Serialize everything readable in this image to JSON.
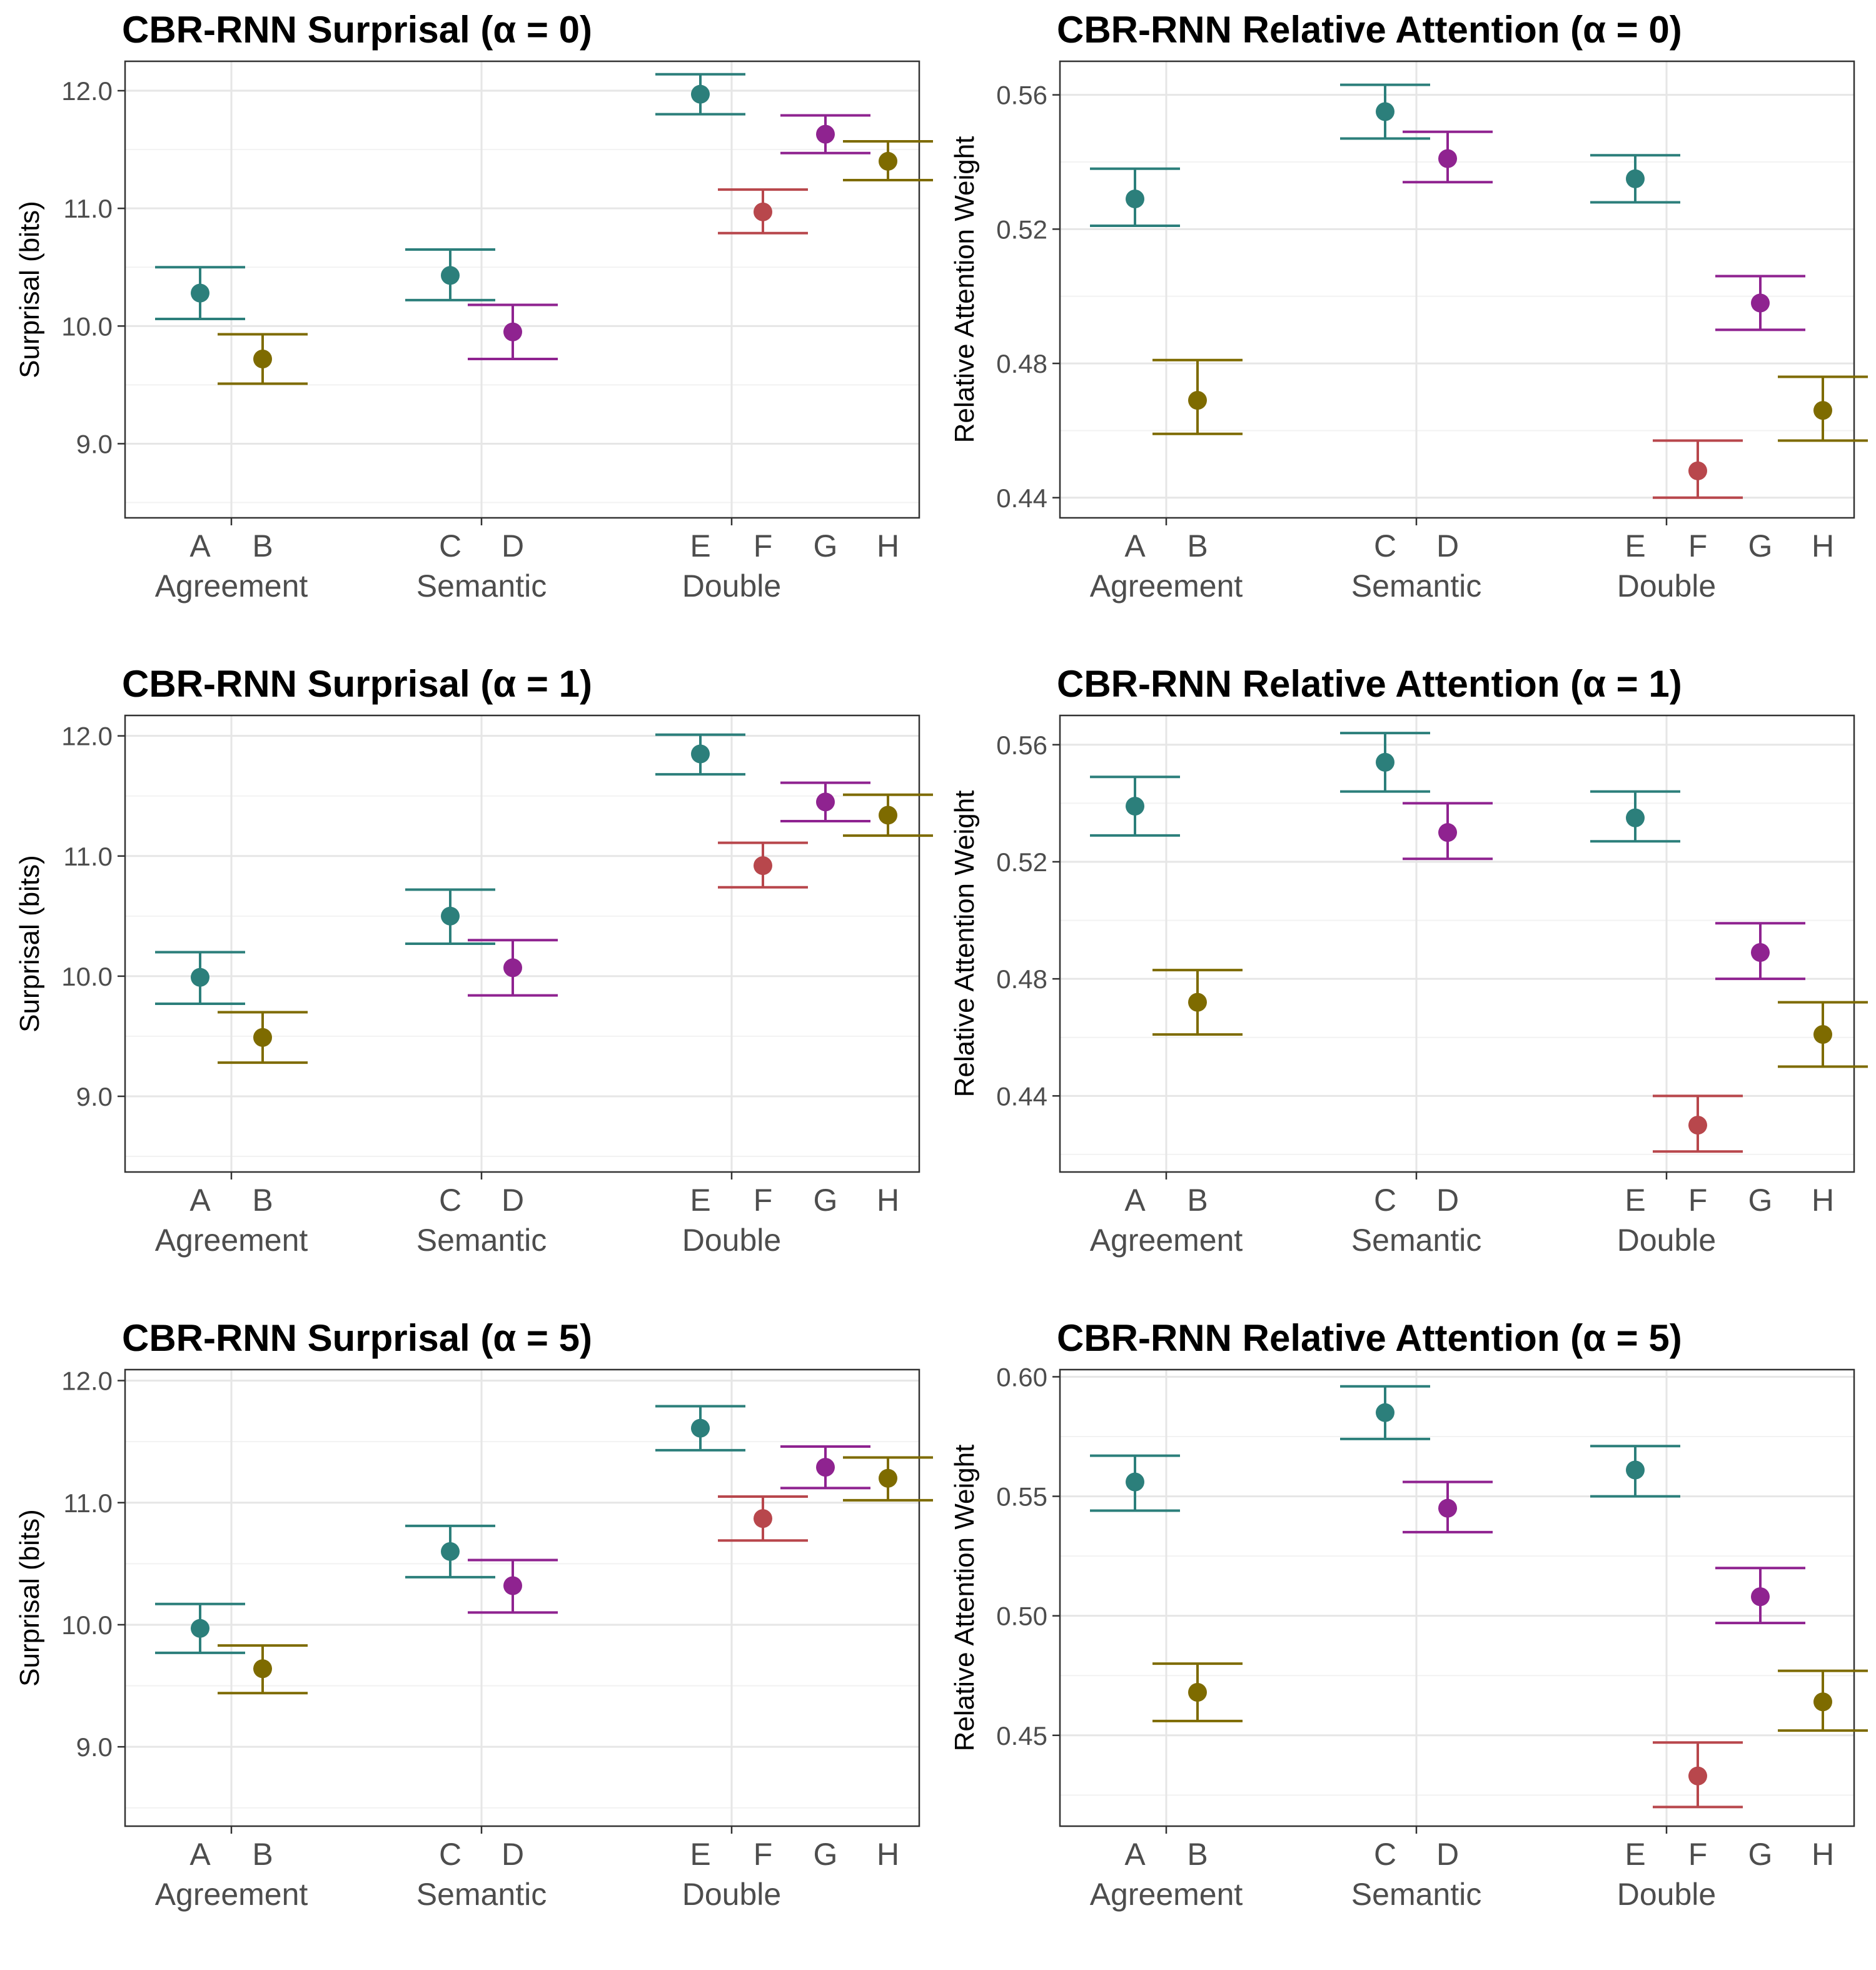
{
  "colors": {
    "teal": "#2c7f7b",
    "olive": "#7e6b00",
    "purple": "#8f2390",
    "red": "#b8474c",
    "grid_major": "#e6e6e6",
    "grid_minor": "#f2f2f2",
    "axis_text": "#4d4d4d"
  },
  "chart_data": [
    {
      "type": "scatter",
      "title": "CBR-RNN Surprisal (α = 0)",
      "ylabel": "Surprisal (bits)",
      "ylim": [
        8.37,
        12.25
      ],
      "yticks": [
        9.0,
        10.0,
        11.0,
        12.0
      ],
      "ytick_labels": [
        "9.0",
        "10.0",
        "11.0",
        "12.0"
      ],
      "groups": [
        "Agreement",
        "Semantic",
        "Double"
      ],
      "points": [
        {
          "label": "A",
          "group": "Agreement",
          "y": 10.28,
          "lo": 10.06,
          "hi": 10.5,
          "color": "teal"
        },
        {
          "label": "B",
          "group": "Agreement",
          "y": 9.72,
          "lo": 9.51,
          "hi": 9.93,
          "color": "olive"
        },
        {
          "label": "C",
          "group": "Semantic",
          "y": 10.43,
          "lo": 10.22,
          "hi": 10.65,
          "color": "teal"
        },
        {
          "label": "D",
          "group": "Semantic",
          "y": 9.95,
          "lo": 9.72,
          "hi": 10.18,
          "color": "purple"
        },
        {
          "label": "E",
          "group": "Double",
          "y": 11.97,
          "lo": 11.8,
          "hi": 12.14,
          "color": "teal"
        },
        {
          "label": "F",
          "group": "Double",
          "y": 10.97,
          "lo": 10.79,
          "hi": 11.16,
          "color": "red"
        },
        {
          "label": "G",
          "group": "Double",
          "y": 11.63,
          "lo": 11.47,
          "hi": 11.79,
          "color": "purple"
        },
        {
          "label": "H",
          "group": "Double",
          "y": 11.4,
          "lo": 11.24,
          "hi": 11.57,
          "color": "olive"
        }
      ]
    },
    {
      "type": "scatter",
      "title": "CBR-RNN Relative Attention (α = 0)",
      "ylabel": "Relative Attention Weight",
      "ylim": [
        0.434,
        0.57
      ],
      "yticks": [
        0.44,
        0.48,
        0.52,
        0.56
      ],
      "ytick_labels": [
        "0.44",
        "0.48",
        "0.52",
        "0.56"
      ],
      "groups": [
        "Agreement",
        "Semantic",
        "Double"
      ],
      "points": [
        {
          "label": "A",
          "group": "Agreement",
          "y": 0.529,
          "lo": 0.521,
          "hi": 0.538,
          "color": "teal"
        },
        {
          "label": "B",
          "group": "Agreement",
          "y": 0.469,
          "lo": 0.459,
          "hi": 0.481,
          "color": "olive"
        },
        {
          "label": "C",
          "group": "Semantic",
          "y": 0.555,
          "lo": 0.547,
          "hi": 0.563,
          "color": "teal"
        },
        {
          "label": "D",
          "group": "Semantic",
          "y": 0.541,
          "lo": 0.534,
          "hi": 0.549,
          "color": "purple"
        },
        {
          "label": "E",
          "group": "Double",
          "y": 0.535,
          "lo": 0.528,
          "hi": 0.542,
          "color": "teal"
        },
        {
          "label": "F",
          "group": "Double",
          "y": 0.448,
          "lo": 0.44,
          "hi": 0.457,
          "color": "red"
        },
        {
          "label": "G",
          "group": "Double",
          "y": 0.498,
          "lo": 0.49,
          "hi": 0.506,
          "color": "purple"
        },
        {
          "label": "H",
          "group": "Double",
          "y": 0.466,
          "lo": 0.457,
          "hi": 0.476,
          "color": "olive"
        }
      ]
    },
    {
      "type": "scatter",
      "title": "CBR-RNN Surprisal (α = 1)",
      "ylabel": "Surprisal (bits)",
      "ylim": [
        8.37,
        12.17
      ],
      "yticks": [
        9.0,
        10.0,
        11.0,
        12.0
      ],
      "ytick_labels": [
        "9.0",
        "10.0",
        "11.0",
        "12.0"
      ],
      "groups": [
        "Agreement",
        "Semantic",
        "Double"
      ],
      "points": [
        {
          "label": "A",
          "group": "Agreement",
          "y": 9.99,
          "lo": 9.77,
          "hi": 10.2,
          "color": "teal"
        },
        {
          "label": "B",
          "group": "Agreement",
          "y": 9.49,
          "lo": 9.28,
          "hi": 9.7,
          "color": "olive"
        },
        {
          "label": "C",
          "group": "Semantic",
          "y": 10.5,
          "lo": 10.27,
          "hi": 10.72,
          "color": "teal"
        },
        {
          "label": "D",
          "group": "Semantic",
          "y": 10.07,
          "lo": 9.84,
          "hi": 10.3,
          "color": "purple"
        },
        {
          "label": "E",
          "group": "Double",
          "y": 11.85,
          "lo": 11.68,
          "hi": 12.01,
          "color": "teal"
        },
        {
          "label": "F",
          "group": "Double",
          "y": 10.92,
          "lo": 10.74,
          "hi": 11.11,
          "color": "red"
        },
        {
          "label": "G",
          "group": "Double",
          "y": 11.45,
          "lo": 11.29,
          "hi": 11.61,
          "color": "purple"
        },
        {
          "label": "H",
          "group": "Double",
          "y": 11.34,
          "lo": 11.17,
          "hi": 11.51,
          "color": "olive"
        }
      ]
    },
    {
      "type": "scatter",
      "title": "CBR-RNN Relative Attention (α = 1)",
      "ylabel": "Relative Attention Weight",
      "ylim": [
        0.414,
        0.57
      ],
      "yticks": [
        0.44,
        0.48,
        0.52,
        0.56
      ],
      "ytick_labels": [
        "0.44",
        "0.48",
        "0.52",
        "0.56"
      ],
      "groups": [
        "Agreement",
        "Semantic",
        "Double"
      ],
      "points": [
        {
          "label": "A",
          "group": "Agreement",
          "y": 0.539,
          "lo": 0.529,
          "hi": 0.549,
          "color": "teal"
        },
        {
          "label": "B",
          "group": "Agreement",
          "y": 0.472,
          "lo": 0.461,
          "hi": 0.483,
          "color": "olive"
        },
        {
          "label": "C",
          "group": "Semantic",
          "y": 0.554,
          "lo": 0.544,
          "hi": 0.564,
          "color": "teal"
        },
        {
          "label": "D",
          "group": "Semantic",
          "y": 0.53,
          "lo": 0.521,
          "hi": 0.54,
          "color": "purple"
        },
        {
          "label": "E",
          "group": "Double",
          "y": 0.535,
          "lo": 0.527,
          "hi": 0.544,
          "color": "teal"
        },
        {
          "label": "F",
          "group": "Double",
          "y": 0.43,
          "lo": 0.421,
          "hi": 0.44,
          "color": "red"
        },
        {
          "label": "G",
          "group": "Double",
          "y": 0.489,
          "lo": 0.48,
          "hi": 0.499,
          "color": "purple"
        },
        {
          "label": "H",
          "group": "Double",
          "y": 0.461,
          "lo": 0.45,
          "hi": 0.472,
          "color": "olive"
        }
      ]
    },
    {
      "type": "scatter",
      "title": "CBR-RNN Surprisal (α = 5)",
      "ylabel": "Surprisal (bits)",
      "ylim": [
        8.35,
        12.09
      ],
      "yticks": [
        9.0,
        10.0,
        11.0,
        12.0
      ],
      "ytick_labels": [
        "9.0",
        "10.0",
        "11.0",
        "12.0"
      ],
      "groups": [
        "Agreement",
        "Semantic",
        "Double"
      ],
      "points": [
        {
          "label": "A",
          "group": "Agreement",
          "y": 9.97,
          "lo": 9.77,
          "hi": 10.17,
          "color": "teal"
        },
        {
          "label": "B",
          "group": "Agreement",
          "y": 9.64,
          "lo": 9.44,
          "hi": 9.83,
          "color": "olive"
        },
        {
          "label": "C",
          "group": "Semantic",
          "y": 10.6,
          "lo": 10.39,
          "hi": 10.81,
          "color": "teal"
        },
        {
          "label": "D",
          "group": "Semantic",
          "y": 10.32,
          "lo": 10.1,
          "hi": 10.53,
          "color": "purple"
        },
        {
          "label": "E",
          "group": "Double",
          "y": 11.61,
          "lo": 11.43,
          "hi": 11.79,
          "color": "teal"
        },
        {
          "label": "F",
          "group": "Double",
          "y": 10.87,
          "lo": 10.69,
          "hi": 11.05,
          "color": "red"
        },
        {
          "label": "G",
          "group": "Double",
          "y": 11.29,
          "lo": 11.12,
          "hi": 11.46,
          "color": "purple"
        },
        {
          "label": "H",
          "group": "Double",
          "y": 11.2,
          "lo": 11.02,
          "hi": 11.37,
          "color": "olive"
        }
      ]
    },
    {
      "type": "scatter",
      "title": "CBR-RNN Relative Attention (α = 5)",
      "ylabel": "Relative Attention Weight",
      "ylim": [
        0.412,
        0.603
      ],
      "yticks": [
        0.45,
        0.5,
        0.55,
        0.6
      ],
      "ytick_labels": [
        "0.45",
        "0.50",
        "0.55",
        "0.60"
      ],
      "groups": [
        "Agreement",
        "Semantic",
        "Double"
      ],
      "points": [
        {
          "label": "A",
          "group": "Agreement",
          "y": 0.556,
          "lo": 0.544,
          "hi": 0.567,
          "color": "teal"
        },
        {
          "label": "B",
          "group": "Agreement",
          "y": 0.468,
          "lo": 0.456,
          "hi": 0.48,
          "color": "olive"
        },
        {
          "label": "C",
          "group": "Semantic",
          "y": 0.585,
          "lo": 0.574,
          "hi": 0.596,
          "color": "teal"
        },
        {
          "label": "D",
          "group": "Semantic",
          "y": 0.545,
          "lo": 0.535,
          "hi": 0.556,
          "color": "purple"
        },
        {
          "label": "E",
          "group": "Double",
          "y": 0.561,
          "lo": 0.55,
          "hi": 0.571,
          "color": "teal"
        },
        {
          "label": "F",
          "group": "Double",
          "y": 0.433,
          "lo": 0.42,
          "hi": 0.447,
          "color": "red"
        },
        {
          "label": "G",
          "group": "Double",
          "y": 0.508,
          "lo": 0.497,
          "hi": 0.52,
          "color": "purple"
        },
        {
          "label": "H",
          "group": "Double",
          "y": 0.464,
          "lo": 0.452,
          "hi": 0.477,
          "color": "olive"
        }
      ]
    }
  ]
}
